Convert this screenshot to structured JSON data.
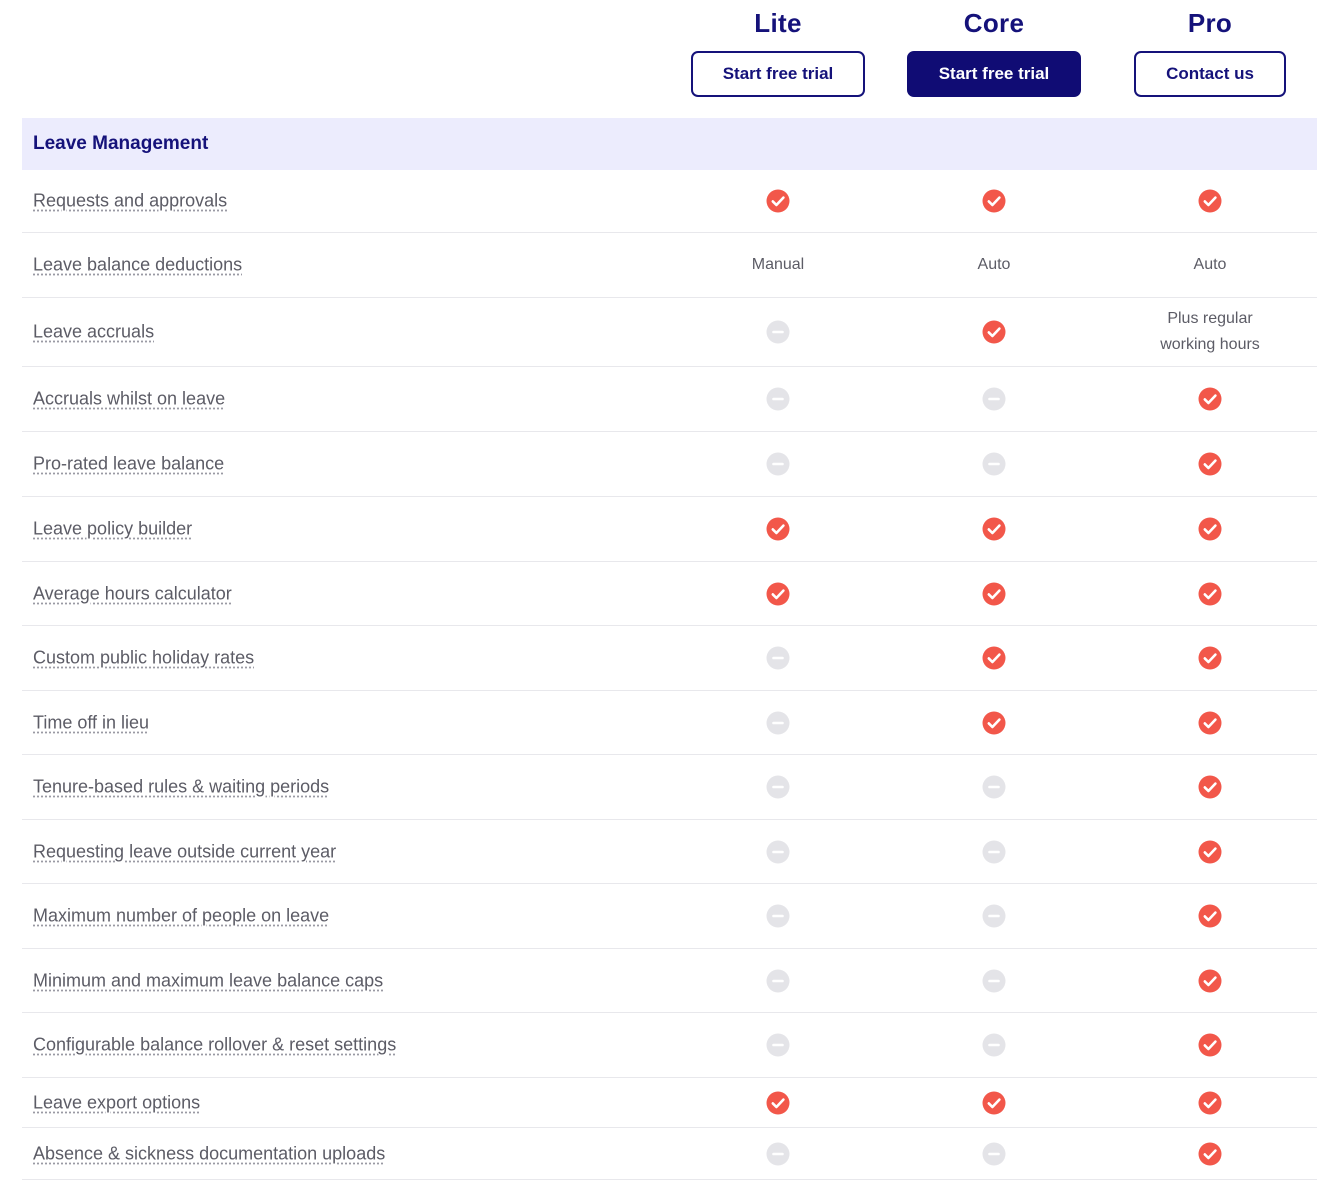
{
  "plans": [
    {
      "name": "Lite",
      "button": "Start free trial"
    },
    {
      "name": "Core",
      "button": "Start free trial"
    },
    {
      "name": "Pro",
      "button": "Contact us"
    }
  ],
  "section": {
    "title": "Leave Management"
  },
  "features": [
    {
      "label": "Requests and approvals",
      "values": [
        "check",
        "check",
        "check"
      ]
    },
    {
      "label": "Leave balance deductions",
      "values": [
        "Manual",
        "Auto",
        "Auto"
      ]
    },
    {
      "label": "Leave accruals",
      "values": [
        "dash",
        "check",
        "Plus regular working hours"
      ]
    },
    {
      "label": "Accruals whilst on leave",
      "values": [
        "dash",
        "dash",
        "check"
      ]
    },
    {
      "label": "Pro-rated leave balance",
      "values": [
        "dash",
        "dash",
        "check"
      ]
    },
    {
      "label": "Leave policy builder",
      "values": [
        "check",
        "check",
        "check"
      ]
    },
    {
      "label": "Average hours calculator",
      "values": [
        "check",
        "check",
        "check"
      ]
    },
    {
      "label": "Custom public holiday rates",
      "values": [
        "dash",
        "check",
        "check"
      ]
    },
    {
      "label": "Time off in lieu",
      "values": [
        "dash",
        "check",
        "check"
      ]
    },
    {
      "label": "Tenure-based rules & waiting periods",
      "values": [
        "dash",
        "dash",
        "check"
      ]
    },
    {
      "label": "Requesting leave outside current year",
      "values": [
        "dash",
        "dash",
        "check"
      ]
    },
    {
      "label": "Maximum number of people on leave",
      "values": [
        "dash",
        "dash",
        "check"
      ]
    },
    {
      "label": "Minimum and maximum leave balance caps",
      "values": [
        "dash",
        "dash",
        "check"
      ]
    },
    {
      "label": "Configurable balance rollover & reset settings",
      "values": [
        "dash",
        "dash",
        "check"
      ]
    },
    {
      "label": "Leave export options",
      "values": [
        "check",
        "check",
        "check"
      ]
    },
    {
      "label": "Absence & sickness documentation uploads",
      "values": [
        "dash",
        "dash",
        "check"
      ]
    }
  ],
  "icons": {
    "check": "check-circle-icon",
    "dash": "minus-circle-icon"
  },
  "colors": {
    "brand": "#15127a",
    "check": "#f2574a",
    "dash": "#e4e4e8",
    "section_bg": "#ececfd"
  }
}
